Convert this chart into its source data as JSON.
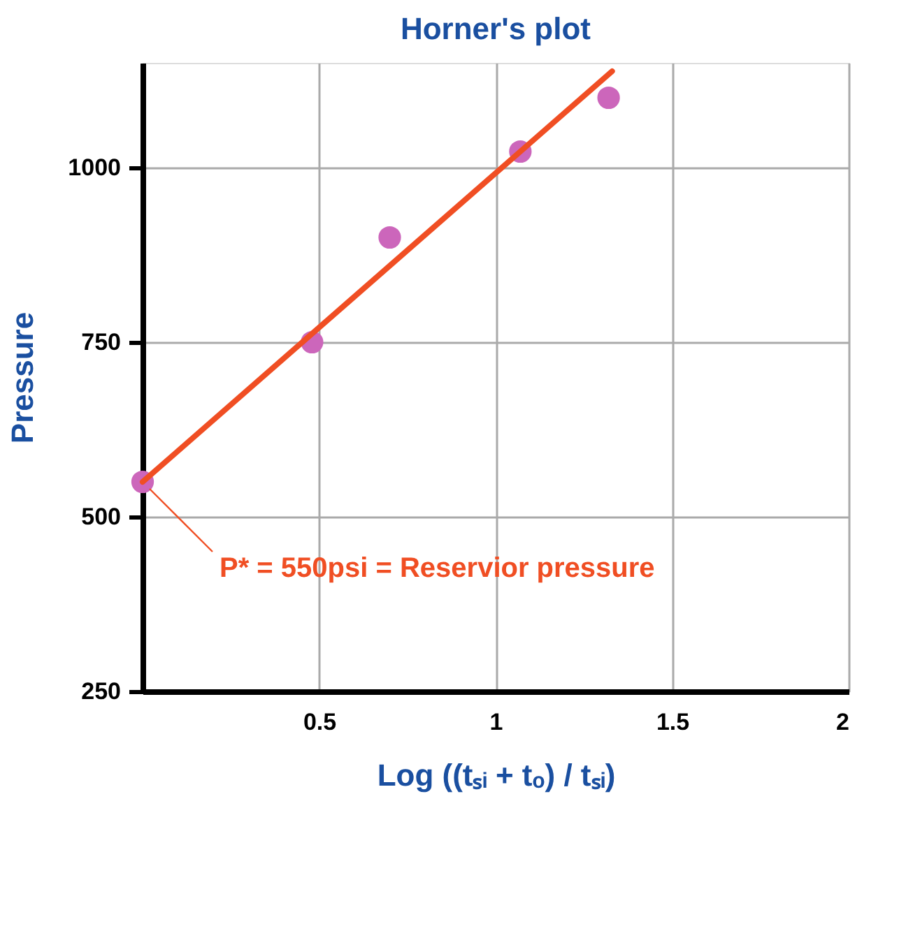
{
  "chart_data": {
    "type": "scatter",
    "title": "Horner's plot",
    "xlabel": "Log ((tₛᵢ + tₒ) / tₛᵢ)",
    "ylabel": "Pressure",
    "series": [
      {
        "color": "#cc66bb",
        "x": [
          0,
          0.48,
          0.7,
          1.07,
          1.32
        ],
        "values": [
          550,
          750,
          900,
          1023,
          1100
        ],
        "marker": "circle"
      },
      {
        "type": "line",
        "color": "#f04e23",
        "x": [
          0,
          1.33
        ],
        "values": [
          550,
          1138
        ],
        "marker": "none",
        "line_style": "solid"
      }
    ],
    "xlim": [
      0,
      2
    ],
    "xticks": [
      0.5,
      1,
      1.5,
      2
    ],
    "ylim": [
      250,
      1150
    ],
    "yticks": [
      250,
      500,
      750,
      1000
    ],
    "grid": true,
    "annotations": [
      {
        "text": "P* = 550psi = Reservior pressure",
        "x": 0,
        "y": 550
      }
    ]
  }
}
